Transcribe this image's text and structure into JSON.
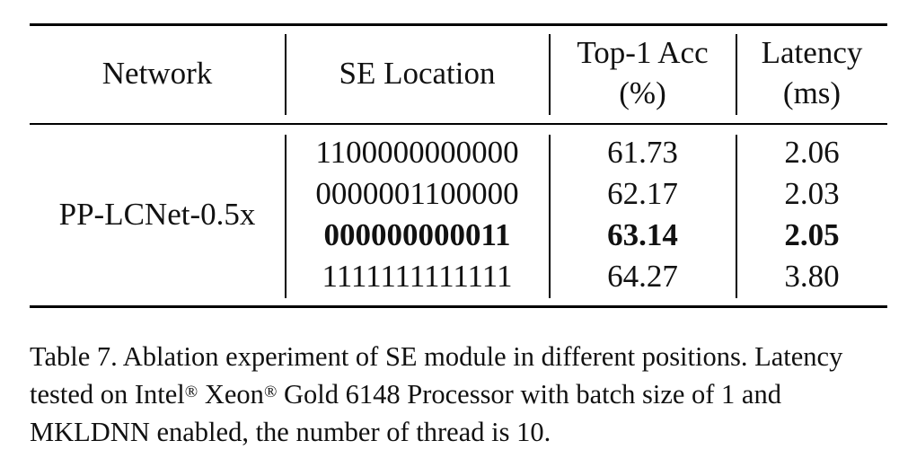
{
  "table": {
    "headers": {
      "network": "Network",
      "se_location": "SE Location",
      "top1_line1": "Top-1 Acc",
      "top1_line2": "(%)",
      "latency_line1": "Latency",
      "latency_line2": "(ms)"
    },
    "network": "PP-LCNet-0.5x",
    "rows": [
      {
        "se_location": "1100000000000",
        "top1": "61.73",
        "latency": "2.06",
        "bold": false
      },
      {
        "se_location": "0000001100000",
        "top1": "62.17",
        "latency": "2.03",
        "bold": false
      },
      {
        "se_location": "000000000011",
        "top1": "63.14",
        "latency": "2.05",
        "bold": true
      },
      {
        "se_location": "1111111111111",
        "top1": "64.27",
        "latency": "3.80",
        "bold": false
      }
    ]
  },
  "caption": {
    "part1": "Table 7. Ablation experiment of SE module in different positions. Latency tested on Intel",
    "reg1": "®",
    "part2": " Xeon",
    "reg2": "®",
    "part3": " Gold 6148 Processor with batch size of 1 and MKLDNN enabled, the number of thread is 10."
  }
}
